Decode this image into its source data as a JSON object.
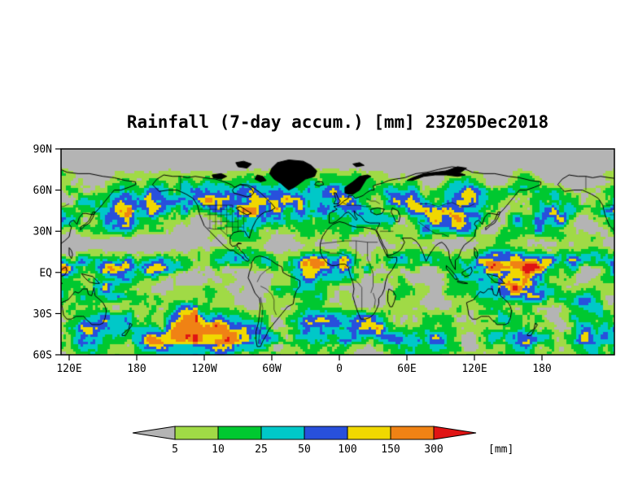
{
  "title": "Rainfall (7-day accum.) [mm] 23Z05Dec2018",
  "y_axis": {
    "ticks": [
      "90N",
      "60N",
      "30N",
      "EQ",
      "30S",
      "60S"
    ]
  },
  "x_axis": {
    "ticks": [
      "120E",
      "180",
      "120W",
      "60W",
      "0",
      "60E",
      "120E",
      "180"
    ]
  },
  "colorbar": {
    "levels": [
      "5",
      "10",
      "25",
      "50",
      "100",
      "150",
      "300"
    ],
    "units_label": "[mm]",
    "below_color": "#b4b4b4",
    "above_color": "#e01414",
    "segment_colors": [
      "#a0da46",
      "#00c830",
      "#00c8c8",
      "#2850dc",
      "#f0d800",
      "#f08214"
    ]
  },
  "chart_data": {
    "type": "heatmap",
    "title": "Rainfall (7-day accum.) [mm] 23Z05Dec2018",
    "variable": "7-day accumulated rainfall",
    "units": "mm",
    "valid_time": "23Z05Dec2018",
    "projection": "equirectangular global map; longitude starts at 120E, wraps eastward past Greenwich to about 115W; latitude 60S to 90N",
    "lat_ticks": [
      "90N",
      "60N",
      "30N",
      "EQ",
      "30S",
      "60S"
    ],
    "lon_ticks": [
      "120E",
      "180",
      "120W",
      "60W",
      "0",
      "60E",
      "120E",
      "180"
    ],
    "color_scale": {
      "levels_mm": [
        5,
        10,
        25,
        50,
        100,
        150,
        300
      ],
      "bin_colors": [
        {
          "range": "<5",
          "color": "#b4b4b4"
        },
        {
          "range": "5-10",
          "color": "#a0da46"
        },
        {
          "range": "10-25",
          "color": "#00c830"
        },
        {
          "range": "25-50",
          "color": "#00c8c8"
        },
        {
          "range": "50-100",
          "color": "#2850dc"
        },
        {
          "range": "100-150",
          "color": "#f0d800"
        },
        {
          "range": "150-300",
          "color": "#f08214"
        },
        {
          "range": ">300",
          "color": "#e01414"
        }
      ]
    },
    "pattern_summary": "Gray where rainfall is under 5 mm (polar cap and dry subtropics); speckled light-green/green/cyan rain bands along midlatitude storm tracks of both hemispheres; heaviest blue/yellow/orange/red streaks concentrated along the ITCZ near the equator and the SPCZ; black coastlines, country and US state borders drawn over the field."
  }
}
